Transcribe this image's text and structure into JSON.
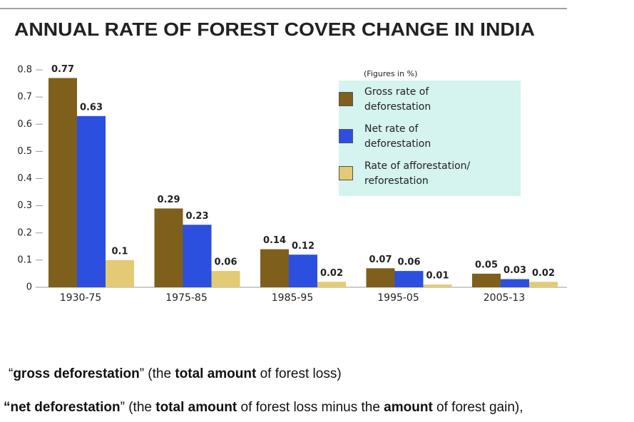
{
  "chart_data": {
    "type": "bar",
    "title": "ANNUAL RATE OF FOREST COVER CHANGE IN INDIA",
    "note": "(Figures in %)",
    "categories": [
      "1930-75",
      "1975-85",
      "1985-95",
      "1995-05",
      "2005-13"
    ],
    "series": [
      {
        "name": "Gross rate of deforestation",
        "color": "#7f5f1c",
        "values": [
          0.77,
          0.29,
          0.14,
          0.07,
          0.05
        ]
      },
      {
        "name": "Net rate of deforestation",
        "color": "#2c4fe0",
        "values": [
          0.63,
          0.23,
          0.12,
          0.06,
          0.03
        ]
      },
      {
        "name": "Rate of afforestation/ reforestation",
        "color": "#e2cb74",
        "values": [
          0.1,
          0.06,
          0.02,
          0.01,
          0.02
        ]
      }
    ],
    "ylim": [
      0,
      0.8
    ],
    "yticks": [
      0,
      0.1,
      0.2,
      0.3,
      0.4,
      0.5,
      0.6,
      0.7,
      0.8
    ],
    "grid": false
  },
  "captions": [
    [
      {
        "text": "“",
        "bold": false
      },
      {
        "text": "gross deforestation",
        "bold": true
      },
      {
        "text": "” (the ",
        "bold": false
      },
      {
        "text": "total amount",
        "bold": true
      },
      {
        "text": " of forest loss)",
        "bold": false
      }
    ],
    [
      {
        "text": "“net deforestation",
        "bold": true
      },
      {
        "text": "” (the ",
        "bold": false
      },
      {
        "text": "total amount",
        "bold": true
      },
      {
        "text": " of forest loss minus the ",
        "bold": false
      },
      {
        "text": "amount",
        "bold": true
      },
      {
        "text": " of forest gain),",
        "bold": false
      }
    ]
  ]
}
